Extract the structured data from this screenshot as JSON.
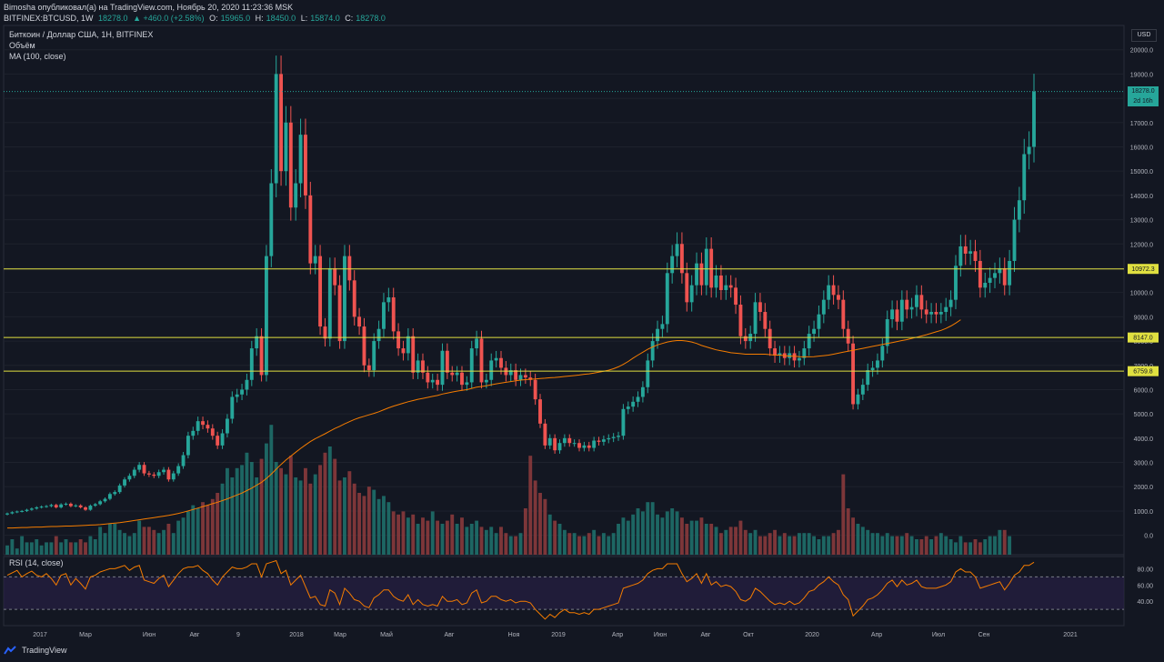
{
  "header": {
    "line1": "Bimosha опубликовал(а) на TradingView.com, Ноябрь 20, 2020 11:23:36 MSK",
    "symbol": "BITFINEX:BTCUSD, 1W",
    "last": "18278.0",
    "change": "▲ +460.0 (+2.58%)",
    "o_label": "O:",
    "o": "15965.0",
    "h_label": "H:",
    "h": "18450.0",
    "l_label": "L:",
    "l": "15874.0",
    "c_label": "C:",
    "c": "18278.0"
  },
  "legend": {
    "title": "Биткоин / Доллар США, 1Н, BITFINEX",
    "volume": "Объём",
    "ma": "MA (100, close)"
  },
  "rsi_label": "RSI (14, close)",
  "footer": {
    "brand": "TradingView"
  },
  "currency": "USD",
  "colors": {
    "up": "#26a69a",
    "down": "#ef5350",
    "ma": "#f57c00",
    "level": "#e0e040",
    "rsi": "#f57c00",
    "rsi_band": "#2a1f4a",
    "background": "#131722"
  },
  "price_tags": {
    "last": "18278.0",
    "countdown": "2d 16h"
  },
  "chart_data": {
    "type": "candlestick",
    "title": "Биткоин / Доллар США, 1Н, BITFINEX",
    "y_ticks": [
      0,
      1000,
      2000,
      3000,
      4000,
      5000,
      6000,
      7000,
      8000,
      9000,
      10000,
      11000,
      12000,
      13000,
      14000,
      15000,
      16000,
      17000,
      18000,
      19000,
      20000
    ],
    "y_tick_labels": [
      "0.0",
      "1000.0",
      "2000.0",
      "3000.0",
      "4000.0",
      "5000.0",
      "6000.0",
      "7000.0",
      "8000.0",
      "9000.0",
      "10000.0",
      "11000.0",
      "12000.0",
      "13000.0",
      "14000.0",
      "15000.0",
      "16000.0",
      "17000.0",
      "18000.0",
      "19000.0",
      "20000.0"
    ],
    "ylim": [
      -800,
      21000
    ],
    "x_labels": [
      "2017",
      "Мар",
      "Июн",
      "Авг",
      "9",
      "2018",
      "Мар",
      "Май",
      "Авг",
      "Ноя",
      "2019",
      "Апр",
      "Июн",
      "Авг",
      "Окт",
      "2020",
      "Апр",
      "Июл",
      "Сен",
      "2021"
    ],
    "levels": [
      {
        "value": 10972.3,
        "label": "10972.3"
      },
      {
        "value": 8147.0,
        "label": "8147.0"
      },
      {
        "value": 6759.8,
        "label": "6759.8"
      }
    ],
    "last_price": 18278.0,
    "closes": [
      900,
      950,
      980,
      1000,
      1050,
      1100,
      1150,
      1180,
      1200,
      1250,
      1150,
      1270,
      1300,
      1200,
      1230,
      1150,
      1050,
      1220,
      1280,
      1400,
      1500,
      1700,
      1780,
      2050,
      2300,
      2450,
      2700,
      2900,
      2550,
      2500,
      2450,
      2600,
      2700,
      2300,
      2550,
      2850,
      3300,
      4100,
      4300,
      4700,
      4550,
      4400,
      4100,
      3700,
      4200,
      4800,
      5700,
      5800,
      6000,
      6400,
      7700,
      8200,
      6600,
      11500,
      14500,
      19000,
      15000,
      17000,
      13500,
      14500,
      16500,
      14000,
      11200,
      11500,
      8600,
      8100,
      11000,
      10300,
      8000,
      11500,
      10500,
      9000,
      8600,
      7000,
      6800,
      8000,
      8500,
      9600,
      9800,
      8400,
      7700,
      7500,
      8200,
      6700,
      7200,
      6700,
      6300,
      6400,
      6200,
      7600,
      6700,
      6600,
      6700,
      6200,
      6300,
      7700,
      8100,
      6300,
      6400,
      7200,
      7300,
      6900,
      6600,
      6800,
      6400,
      6600,
      6500,
      6400,
      5600,
      4600,
      3700,
      4000,
      3500,
      3800,
      4000,
      3800,
      3800,
      3600,
      3700,
      3600,
      3900,
      3850,
      3950,
      4000,
      4050,
      4100,
      5200,
      5300,
      5500,
      5700,
      6100,
      7200,
      8000,
      8500,
      8700,
      10800,
      11500,
      12000,
      10800,
      9600,
      10300,
      11200,
      10300,
      11800,
      10200,
      10700,
      10100,
      10300,
      10200,
      9500,
      8200,
      8000,
      8300,
      9600,
      9200,
      8500,
      7700,
      7400,
      7500,
      7300,
      7500,
      7200,
      7300,
      7700,
      8300,
      8500,
      9100,
      9700,
      10300,
      9900,
      9700,
      8500,
      7900,
      5400,
      5800,
      6200,
      6800,
      6900,
      7200,
      7800,
      8900,
      9300,
      8800,
      9700,
      9300,
      9400,
      9900,
      9300,
      9100,
      9200,
      9100,
      9200,
      9400,
      9700,
      11100,
      11900,
      11600,
      11700,
      11300,
      10200,
      10400,
      10600,
      10800,
      11000,
      10300,
      11300,
      13000,
      13800,
      15700,
      16000,
      18278
    ],
    "volumes": [
      30,
      50,
      20,
      60,
      40,
      40,
      50,
      30,
      40,
      40,
      60,
      40,
      50,
      40,
      40,
      50,
      40,
      60,
      50,
      90,
      70,
      100,
      100,
      80,
      70,
      60,
      70,
      110,
      90,
      90,
      80,
      70,
      80,
      100,
      70,
      110,
      120,
      140,
      160,
      150,
      170,
      160,
      180,
      200,
      230,
      280,
      250,
      280,
      290,
      330,
      300,
      250,
      310,
      360,
      420,
      300,
      280,
      260,
      320,
      250,
      240,
      280,
      230,
      260,
      290,
      330,
      350,
      310,
      240,
      250,
      270,
      230,
      200,
      190,
      220,
      210,
      180,
      190,
      170,
      140,
      130,
      140,
      120,
      130,
      100,
      120,
      110,
      140,
      110,
      100,
      110,
      130,
      100,
      120,
      90,
      100,
      110,
      90,
      80,
      90,
      70,
      90,
      70,
      60,
      60,
      70,
      150,
      320,
      240,
      200,
      180,
      130,
      110,
      100,
      80,
      70,
      70,
      60,
      60,
      70,
      80,
      60,
      70,
      60,
      70,
      100,
      120,
      110,
      130,
      150,
      140,
      170,
      170,
      130,
      120,
      140,
      150,
      140,
      120,
      100,
      110,
      110,
      120,
      100,
      100,
      90,
      70,
      80,
      90,
      90,
      110,
      80,
      70,
      80,
      60,
      60,
      70,
      80,
      60,
      70,
      60,
      60,
      70,
      70,
      70,
      60,
      50,
      60,
      60,
      70,
      80,
      260,
      150,
      120,
      100,
      90,
      80,
      70,
      70,
      60,
      70,
      60,
      60,
      60,
      70,
      60,
      50,
      50,
      60,
      50,
      60,
      70,
      60,
      50,
      40,
      60,
      40,
      40,
      50,
      40,
      50,
      60,
      60,
      80,
      80,
      60
    ],
    "ma_100": [
      300,
      300,
      310,
      320,
      320,
      330,
      340,
      340,
      350,
      360,
      360,
      370,
      380,
      380,
      390,
      400,
      410,
      420,
      430,
      440,
      460,
      480,
      500,
      520,
      550,
      580,
      610,
      640,
      670,
      700,
      730,
      760,
      790,
      820,
      860,
      900,
      950,
      1000,
      1060,
      1120,
      1180,
      1240,
      1300,
      1360,
      1430,
      1500,
      1580,
      1660,
      1740,
      1840,
      1940,
      2060,
      2180,
      2340,
      2520,
      2720,
      2920,
      3100,
      3260,
      3420,
      3580,
      3720,
      3860,
      3980,
      4080,
      4180,
      4290,
      4400,
      4490,
      4590,
      4680,
      4770,
      4840,
      4900,
      4960,
      5020,
      5090,
      5170,
      5250,
      5320,
      5380,
      5440,
      5500,
      5550,
      5600,
      5640,
      5680,
      5720,
      5760,
      5820,
      5860,
      5900,
      5940,
      5970,
      6000,
      6050,
      6100,
      6130,
      6160,
      6200,
      6240,
      6270,
      6300,
      6330,
      6360,
      6390,
      6410,
      6430,
      6440,
      6460,
      6470,
      6490,
      6500,
      6520,
      6540,
      6560,
      6580,
      6600,
      6630,
      6650,
      6680,
      6720,
      6760,
      6800,
      6860,
      6940,
      7040,
      7160,
      7300,
      7420,
      7540,
      7660,
      7760,
      7840,
      7900,
      7960,
      8000,
      8020,
      8020,
      8000,
      7960,
      7900,
      7820,
      7760,
      7700,
      7640,
      7600,
      7560,
      7520,
      7500,
      7480,
      7460,
      7460,
      7460,
      7460,
      7460,
      7440,
      7420,
      7420,
      7400,
      7380,
      7380,
      7360,
      7350,
      7350,
      7360,
      7380,
      7400,
      7420,
      7460,
      7500,
      7540,
      7580,
      7620,
      7660,
      7700,
      7740,
      7780,
      7820,
      7860,
      7900,
      7940,
      7980,
      8020,
      8060,
      8110,
      8160,
      8210,
      8260,
      8320,
      8380,
      8440,
      8520,
      8620,
      8740,
      8880
    ],
    "rsi": {
      "levels": [
        70,
        30
      ],
      "y_ticks": [
        40,
        60,
        80
      ],
      "y_tick_labels": [
        "40.00",
        "60.00",
        "80.00"
      ],
      "values": [
        72,
        75,
        78,
        70,
        74,
        77,
        72,
        70,
        74,
        68,
        60,
        72,
        74,
        60,
        68,
        62,
        55,
        70,
        72,
        76,
        78,
        80,
        80,
        82,
        84,
        78,
        82,
        84,
        66,
        64,
        62,
        68,
        72,
        58,
        66,
        74,
        80,
        82,
        82,
        84,
        78,
        74,
        66,
        60,
        70,
        76,
        82,
        80,
        80,
        82,
        86,
        86,
        70,
        86,
        88,
        90,
        74,
        78,
        60,
        66,
        72,
        58,
        44,
        46,
        36,
        34,
        54,
        50,
        36,
        56,
        50,
        42,
        40,
        34,
        32,
        44,
        48,
        54,
        54,
        46,
        42,
        40,
        48,
        36,
        42,
        36,
        34,
        36,
        34,
        46,
        40,
        40,
        42,
        36,
        38,
        50,
        54,
        38,
        40,
        46,
        46,
        42,
        40,
        42,
        38,
        40,
        40,
        38,
        30,
        24,
        18,
        24,
        20,
        26,
        30,
        26,
        26,
        24,
        26,
        24,
        30,
        30,
        32,
        34,
        36,
        38,
        56,
        58,
        60,
        62,
        66,
        74,
        78,
        80,
        80,
        86,
        86,
        86,
        74,
        64,
        68,
        74,
        62,
        74,
        60,
        64,
        58,
        60,
        58,
        52,
        42,
        40,
        44,
        56,
        52,
        46,
        40,
        36,
        38,
        36,
        40,
        36,
        38,
        44,
        52,
        54,
        60,
        64,
        70,
        64,
        60,
        48,
        42,
        22,
        28,
        34,
        42,
        44,
        48,
        54,
        62,
        66,
        58,
        66,
        60,
        62,
        66,
        58,
        56,
        56,
        56,
        58,
        60,
        64,
        76,
        80,
        76,
        76,
        70,
        56,
        58,
        60,
        62,
        64,
        54,
        62,
        72,
        76,
        84,
        84,
        88
      ]
    }
  }
}
